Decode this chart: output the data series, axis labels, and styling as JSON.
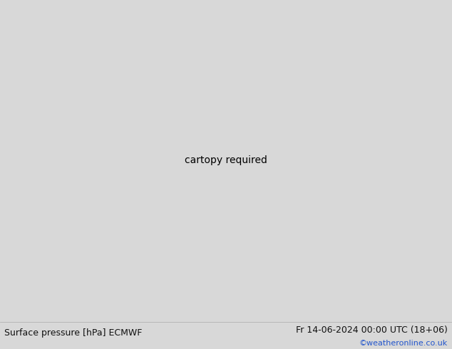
{
  "title_left": "Surface pressure [hPa] ECMWF",
  "title_right": "Fr 14-06-2024 00:00 UTC (18+06)",
  "credit": "©weatheronline.co.uk",
  "fig_width": 6.34,
  "fig_height": 4.9,
  "dpi": 100,
  "land_color": "#c8e8a8",
  "ocean_color": "#d8e8f0",
  "border_color": "#888888",
  "bottom_bar_color": "#d8d8d8",
  "credit_color": "#2255cc",
  "contour_blue": "#3355cc",
  "contour_black": "#111111",
  "contour_red": "#cc2222",
  "lon_min": 85,
  "lon_max": 175,
  "lat_min": -15,
  "lat_max": 55
}
